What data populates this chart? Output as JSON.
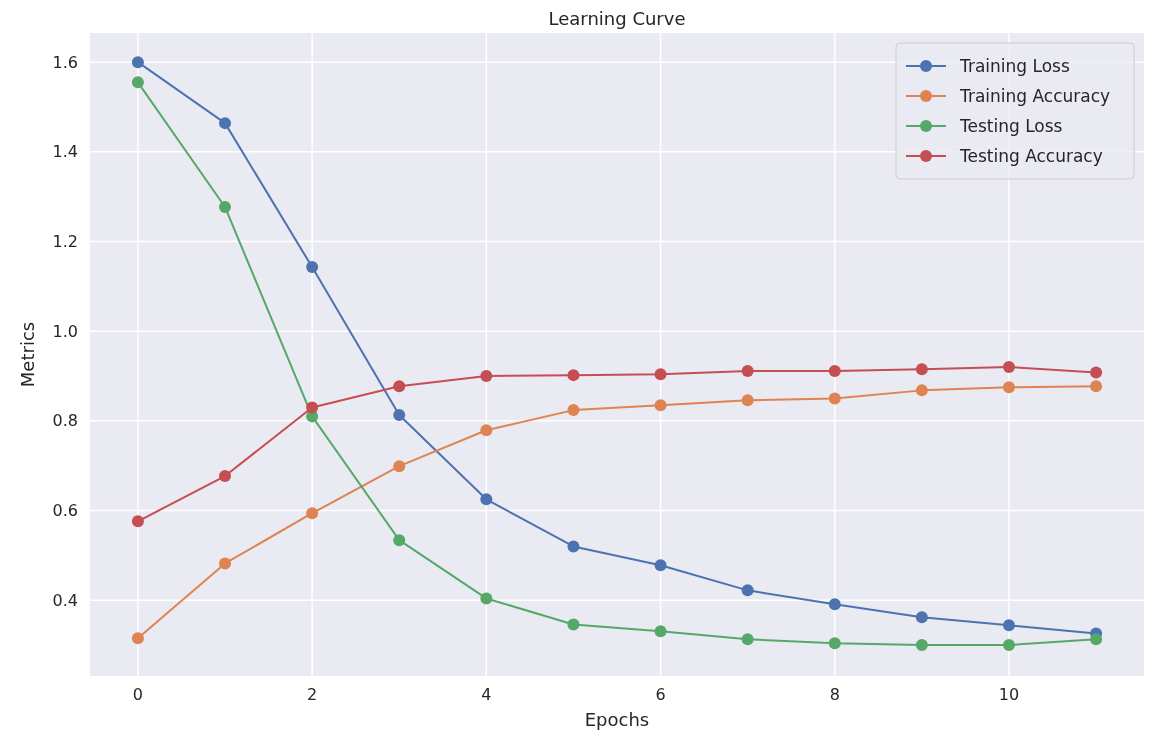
{
  "chart_data": {
    "type": "line",
    "title": "Learning Curve",
    "xlabel": "Epochs",
    "ylabel": "Metrics",
    "x": [
      0,
      1,
      2,
      3,
      4,
      5,
      6,
      7,
      8,
      9,
      10,
      11
    ],
    "series": [
      {
        "name": "Training Loss",
        "color": "#4c72b0",
        "values": [
          1.6,
          1.464,
          1.143,
          0.813,
          0.625,
          0.52,
          0.478,
          0.422,
          0.391,
          0.362,
          0.344,
          0.326
        ]
      },
      {
        "name": "Training Accuracy",
        "color": "#dd8452",
        "values": [
          0.315,
          0.482,
          0.594,
          0.699,
          0.779,
          0.824,
          0.835,
          0.846,
          0.85,
          0.868,
          0.875,
          0.877
        ]
      },
      {
        "name": "Testing Loss",
        "color": "#55a868",
        "values": [
          1.555,
          1.277,
          0.81,
          0.534,
          0.404,
          0.346,
          0.331,
          0.313,
          0.304,
          0.3,
          0.3,
          0.313
        ]
      },
      {
        "name": "Testing Accuracy",
        "color": "#c44e52",
        "values": [
          0.576,
          0.677,
          0.83,
          0.877,
          0.9,
          0.902,
          0.904,
          0.911,
          0.911,
          0.915,
          0.92,
          0.908
        ]
      }
    ],
    "xlim": [
      -0.55,
      11.55
    ],
    "xticks": [
      0,
      2,
      4,
      6,
      8,
      10
    ],
    "ylim": [
      0.231,
      1.665
    ],
    "yticks": [
      {
        "value": 0.4,
        "label": "0.4"
      },
      {
        "value": 0.6,
        "label": "0.6"
      },
      {
        "value": 0.8,
        "label": "0.8"
      },
      {
        "value": 1.0,
        "label": "1.0"
      },
      {
        "value": 1.2,
        "label": "1.2"
      },
      {
        "value": 1.4,
        "label": "1.4"
      },
      {
        "value": 1.6,
        "label": "1.6"
      }
    ],
    "grid": true,
    "legend": "top right",
    "marker": "circle",
    "line_style": "solid"
  }
}
